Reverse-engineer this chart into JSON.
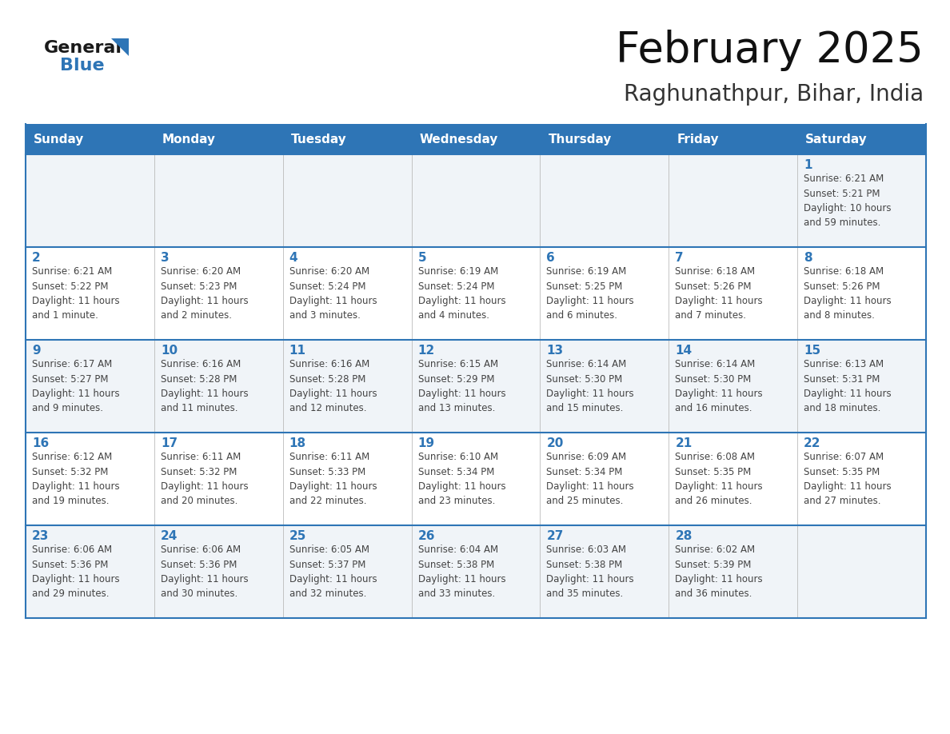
{
  "title": "February 2025",
  "subtitle": "Raghunathpur, Bihar, India",
  "header_bg": "#2E75B6",
  "header_text_color": "#FFFFFF",
  "cell_bg_odd": "#F0F4F8",
  "cell_bg_even": "#FFFFFF",
  "border_color": "#2E75B6",
  "day_num_color": "#2E75B6",
  "text_color": "#444444",
  "separator_color": "#C0C0C0",
  "days_of_week": [
    "Sunday",
    "Monday",
    "Tuesday",
    "Wednesday",
    "Thursday",
    "Friday",
    "Saturday"
  ],
  "weeks": [
    [
      {
        "day": "",
        "info": ""
      },
      {
        "day": "",
        "info": ""
      },
      {
        "day": "",
        "info": ""
      },
      {
        "day": "",
        "info": ""
      },
      {
        "day": "",
        "info": ""
      },
      {
        "day": "",
        "info": ""
      },
      {
        "day": "1",
        "info": "Sunrise: 6:21 AM\nSunset: 5:21 PM\nDaylight: 10 hours\nand 59 minutes."
      }
    ],
    [
      {
        "day": "2",
        "info": "Sunrise: 6:21 AM\nSunset: 5:22 PM\nDaylight: 11 hours\nand 1 minute."
      },
      {
        "day": "3",
        "info": "Sunrise: 6:20 AM\nSunset: 5:23 PM\nDaylight: 11 hours\nand 2 minutes."
      },
      {
        "day": "4",
        "info": "Sunrise: 6:20 AM\nSunset: 5:24 PM\nDaylight: 11 hours\nand 3 minutes."
      },
      {
        "day": "5",
        "info": "Sunrise: 6:19 AM\nSunset: 5:24 PM\nDaylight: 11 hours\nand 4 minutes."
      },
      {
        "day": "6",
        "info": "Sunrise: 6:19 AM\nSunset: 5:25 PM\nDaylight: 11 hours\nand 6 minutes."
      },
      {
        "day": "7",
        "info": "Sunrise: 6:18 AM\nSunset: 5:26 PM\nDaylight: 11 hours\nand 7 minutes."
      },
      {
        "day": "8",
        "info": "Sunrise: 6:18 AM\nSunset: 5:26 PM\nDaylight: 11 hours\nand 8 minutes."
      }
    ],
    [
      {
        "day": "9",
        "info": "Sunrise: 6:17 AM\nSunset: 5:27 PM\nDaylight: 11 hours\nand 9 minutes."
      },
      {
        "day": "10",
        "info": "Sunrise: 6:16 AM\nSunset: 5:28 PM\nDaylight: 11 hours\nand 11 minutes."
      },
      {
        "day": "11",
        "info": "Sunrise: 6:16 AM\nSunset: 5:28 PM\nDaylight: 11 hours\nand 12 minutes."
      },
      {
        "day": "12",
        "info": "Sunrise: 6:15 AM\nSunset: 5:29 PM\nDaylight: 11 hours\nand 13 minutes."
      },
      {
        "day": "13",
        "info": "Sunrise: 6:14 AM\nSunset: 5:30 PM\nDaylight: 11 hours\nand 15 minutes."
      },
      {
        "day": "14",
        "info": "Sunrise: 6:14 AM\nSunset: 5:30 PM\nDaylight: 11 hours\nand 16 minutes."
      },
      {
        "day": "15",
        "info": "Sunrise: 6:13 AM\nSunset: 5:31 PM\nDaylight: 11 hours\nand 18 minutes."
      }
    ],
    [
      {
        "day": "16",
        "info": "Sunrise: 6:12 AM\nSunset: 5:32 PM\nDaylight: 11 hours\nand 19 minutes."
      },
      {
        "day": "17",
        "info": "Sunrise: 6:11 AM\nSunset: 5:32 PM\nDaylight: 11 hours\nand 20 minutes."
      },
      {
        "day": "18",
        "info": "Sunrise: 6:11 AM\nSunset: 5:33 PM\nDaylight: 11 hours\nand 22 minutes."
      },
      {
        "day": "19",
        "info": "Sunrise: 6:10 AM\nSunset: 5:34 PM\nDaylight: 11 hours\nand 23 minutes."
      },
      {
        "day": "20",
        "info": "Sunrise: 6:09 AM\nSunset: 5:34 PM\nDaylight: 11 hours\nand 25 minutes."
      },
      {
        "day": "21",
        "info": "Sunrise: 6:08 AM\nSunset: 5:35 PM\nDaylight: 11 hours\nand 26 minutes."
      },
      {
        "day": "22",
        "info": "Sunrise: 6:07 AM\nSunset: 5:35 PM\nDaylight: 11 hours\nand 27 minutes."
      }
    ],
    [
      {
        "day": "23",
        "info": "Sunrise: 6:06 AM\nSunset: 5:36 PM\nDaylight: 11 hours\nand 29 minutes."
      },
      {
        "day": "24",
        "info": "Sunrise: 6:06 AM\nSunset: 5:36 PM\nDaylight: 11 hours\nand 30 minutes."
      },
      {
        "day": "25",
        "info": "Sunrise: 6:05 AM\nSunset: 5:37 PM\nDaylight: 11 hours\nand 32 minutes."
      },
      {
        "day": "26",
        "info": "Sunrise: 6:04 AM\nSunset: 5:38 PM\nDaylight: 11 hours\nand 33 minutes."
      },
      {
        "day": "27",
        "info": "Sunrise: 6:03 AM\nSunset: 5:38 PM\nDaylight: 11 hours\nand 35 minutes."
      },
      {
        "day": "28",
        "info": "Sunrise: 6:02 AM\nSunset: 5:39 PM\nDaylight: 11 hours\nand 36 minutes."
      },
      {
        "day": "",
        "info": ""
      }
    ]
  ],
  "logo_general_color": "#1a1a1a",
  "logo_blue_color": "#2E75B6",
  "logo_triangle_color": "#2E75B6",
  "title_fontsize": 38,
  "subtitle_fontsize": 20,
  "header_fontsize": 11,
  "day_num_fontsize": 11,
  "info_fontsize": 8.5
}
